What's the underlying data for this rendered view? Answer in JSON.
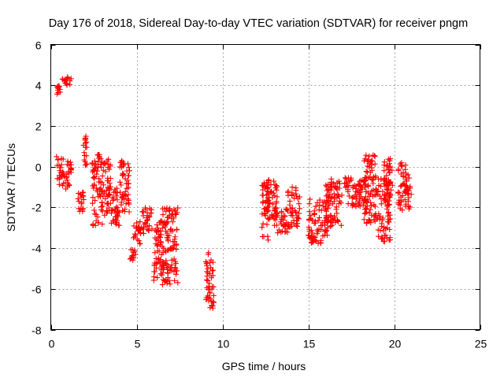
{
  "chart_data": {
    "type": "scatter",
    "title": "Day 176 of 2018, Sidereal Day-to-day VTEC variation (SDTVAR) for receiver pngm",
    "xlabel": "GPS time / hours",
    "ylabel": "SDTVAR / TECUs",
    "xlim": [
      0,
      25
    ],
    "ylim": [
      -8,
      6
    ],
    "xticks": [
      0,
      5,
      10,
      15,
      20,
      25
    ],
    "yticks": [
      -8,
      -6,
      -4,
      -2,
      0,
      2,
      4,
      6
    ],
    "grid": true,
    "marker": "+",
    "color": "#ff0000",
    "series": [
      {
        "name": "SDTVAR",
        "clusters": [
          {
            "x": [
              0.35,
              0.55
            ],
            "y": [
              3.5,
              4.0
            ]
          },
          {
            "x": [
              0.55,
              1.2
            ],
            "y": [
              4.0,
              4.4
            ]
          },
          {
            "x": [
              0.3,
              1.2
            ],
            "y": [
              -1.1,
              0.5
            ]
          },
          {
            "x": [
              1.55,
              1.95
            ],
            "y": [
              -2.2,
              -1.2
            ]
          },
          {
            "x": [
              1.9,
              2.1
            ],
            "y": [
              -0.1,
              1.5
            ]
          },
          {
            "x": [
              2.4,
              3.0
            ],
            "y": [
              -2.9,
              0.6
            ]
          },
          {
            "x": [
              3.0,
              3.5
            ],
            "y": [
              -2.4,
              0.4
            ]
          },
          {
            "x": [
              3.5,
              4.0
            ],
            "y": [
              -2.9,
              -0.9
            ]
          },
          {
            "x": [
              4.0,
              4.6
            ],
            "y": [
              -2.3,
              0.3
            ]
          },
          {
            "x": [
              4.6,
              4.95
            ],
            "y": [
              -4.6,
              -4.0
            ]
          },
          {
            "x": [
              4.8,
              5.3
            ],
            "y": [
              -3.8,
              -2.7
            ]
          },
          {
            "x": [
              5.3,
              5.9
            ],
            "y": [
              -3.3,
              -2.0
            ]
          },
          {
            "x": [
              6.0,
              6.6
            ],
            "y": [
              -5.6,
              -2.6
            ]
          },
          {
            "x": [
              6.5,
              7.4
            ],
            "y": [
              -5.8,
              -2.0
            ]
          },
          {
            "x": [
              9.0,
              9.5
            ],
            "y": [
              -7.0,
              -4.2
            ]
          },
          {
            "x": [
              12.3,
              12.7
            ],
            "y": [
              -3.7,
              -0.6
            ]
          },
          {
            "x": [
              12.6,
              13.2
            ],
            "y": [
              -2.6,
              -0.7
            ]
          },
          {
            "x": [
              13.0,
              13.8
            ],
            "y": [
              -3.3,
              -2.0
            ]
          },
          {
            "x": [
              13.8,
              14.5
            ],
            "y": [
              -3.0,
              -1.0
            ]
          },
          {
            "x": [
              15.0,
              16.2
            ],
            "y": [
              -3.8,
              -1.6
            ]
          },
          {
            "x": [
              16.0,
              17.0
            ],
            "y": [
              -3.0,
              -0.6
            ]
          },
          {
            "x": [
              17.0,
              18.5
            ],
            "y": [
              -2.1,
              -0.5
            ]
          },
          {
            "x": [
              18.2,
              19.0
            ],
            "y": [
              -2.8,
              0.6
            ]
          },
          {
            "x": [
              19.0,
              19.8
            ],
            "y": [
              -3.8,
              -0.6
            ]
          },
          {
            "x": [
              19.4,
              19.9
            ],
            "y": [
              -1.2,
              0.4
            ]
          },
          {
            "x": [
              20.2,
              21.0
            ],
            "y": [
              -2.2,
              0.2
            ]
          }
        ]
      }
    ]
  }
}
